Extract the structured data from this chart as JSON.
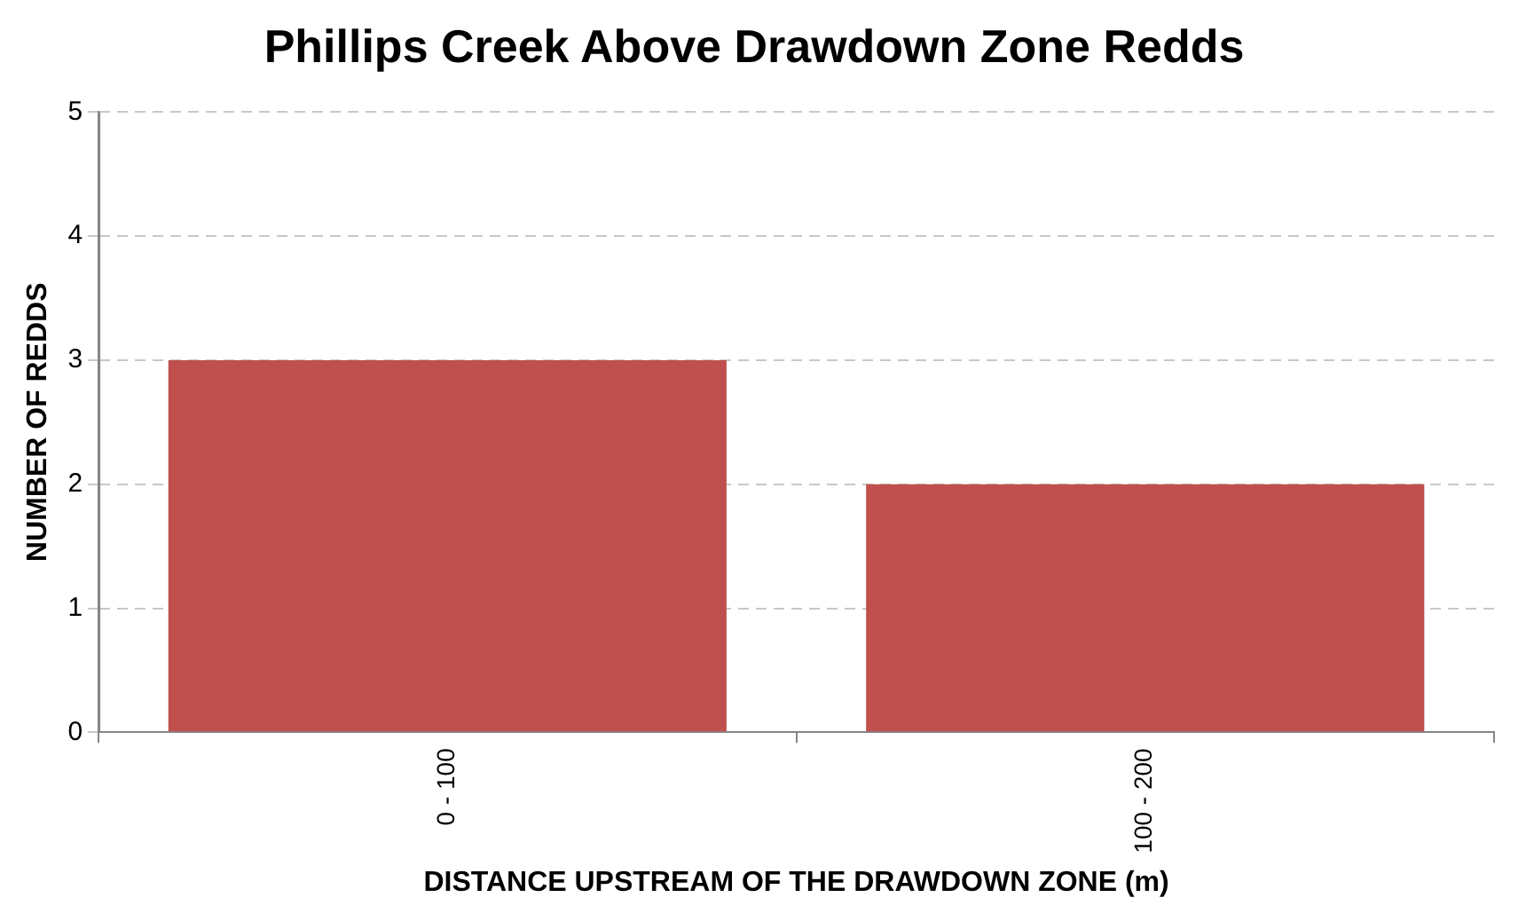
{
  "chart_data": {
    "type": "bar",
    "title": "Phillips Creek Above Drawdown Zone Redds",
    "xlabel": "DISTANCE UPSTREAM OF THE DRAWDOWN ZONE (m)",
    "ylabel": "NUMBER OF REDDS",
    "categories": [
      "0 - 100",
      "100 - 200"
    ],
    "values": [
      3,
      2
    ],
    "color": "#c0504d",
    "ylim": [
      0,
      5
    ],
    "yticks": [
      0,
      1,
      2,
      3,
      4,
      5
    ],
    "grid": "y",
    "legend": false
  }
}
